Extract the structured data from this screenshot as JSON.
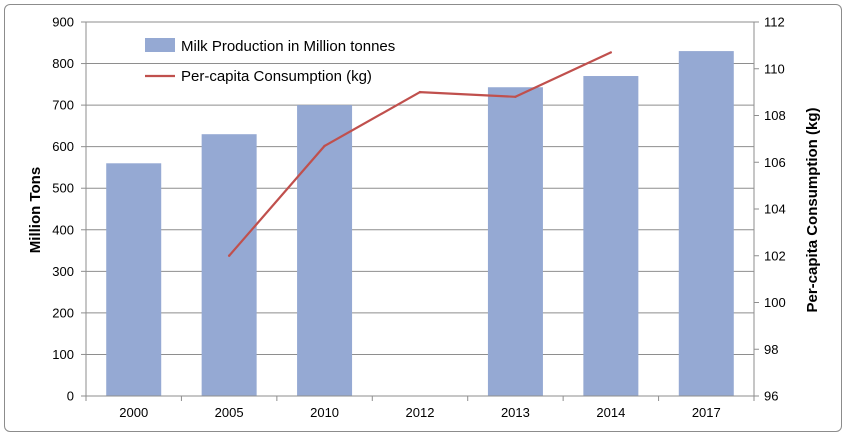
{
  "chart_data": {
    "type": "bar",
    "categories": [
      "2000",
      "2005",
      "2010",
      "2012",
      "2013",
      "2014",
      "2017"
    ],
    "series": [
      {
        "name": "Milk Production in Million tonnes",
        "kind": "bar",
        "axis": "left",
        "color": "#95a9d3",
        "values": [
          560,
          630,
          700,
          null,
          743,
          770,
          830
        ]
      },
      {
        "name": "Per-capita Consumption (kg)",
        "kind": "line",
        "axis": "right",
        "color": "#c0504d",
        "values": [
          null,
          102.0,
          106.7,
          109.0,
          108.8,
          110.7,
          null
        ]
      }
    ],
    "ylabel": "Million Tons",
    "y2label": "Per-capita Consumption (kg)",
    "ylim": [
      0,
      900
    ],
    "y2lim": [
      96,
      112
    ],
    "yticks": [
      "0",
      "100",
      "200",
      "300",
      "400",
      "500",
      "600",
      "700",
      "800",
      "900"
    ],
    "y2ticks": [
      "96",
      "98",
      "100",
      "102",
      "104",
      "106",
      "108",
      "110",
      "112"
    ],
    "grid": true,
    "legend_position": "top-left"
  }
}
